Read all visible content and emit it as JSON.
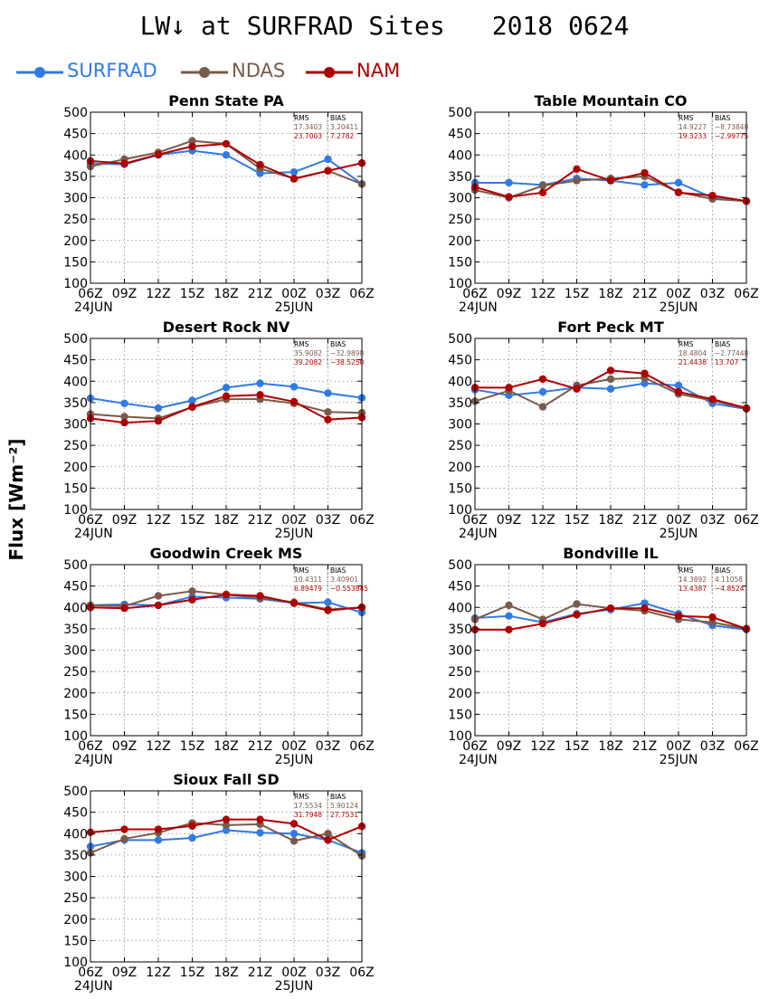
{
  "header": {
    "title": "LW↓ at SURFRAD Sites",
    "date": "2018 0624"
  },
  "colors": {
    "SURFRAD": "#2f7ae5",
    "NDAS": "#7a5a4a",
    "NAM": "#b00000",
    "stats_row1": "#7a5a4a",
    "stats_row2": "#b00000"
  },
  "legend": [
    {
      "name": "SURFRAD",
      "color": "#2f7ae5"
    },
    {
      "name": "NDAS",
      "color": "#7a5a4a"
    },
    {
      "name": "NAM",
      "color": "#b00000"
    }
  ],
  "y_axis_label": "Flux [Wm⁻²]",
  "chart_data": [
    {
      "type": "line",
      "title": "Penn State PA",
      "categories": [
        "06Z",
        "09Z",
        "12Z",
        "15Z",
        "18Z",
        "21Z",
        "00Z",
        "03Z",
        "06Z"
      ],
      "date_labels": [
        "24JUN",
        "25JUN"
      ],
      "ylim": [
        100,
        500
      ],
      "yticks": [
        100,
        150,
        200,
        250,
        300,
        350,
        400,
        450,
        500
      ],
      "grid": true,
      "stats": {
        "headers": [
          "RMS",
          "BIAS"
        ],
        "rows": [
          [
            "17.3403",
            "3.20411"
          ],
          [
            "23.7003",
            "7.2782"
          ]
        ]
      },
      "series": [
        {
          "name": "SURFRAD",
          "values": [
            380,
            378,
            400,
            410,
            400,
            357,
            360,
            390,
            332
          ]
        },
        {
          "name": "NDAS",
          "values": [
            373,
            390,
            406,
            433,
            426,
            368,
            345,
            363,
            332
          ]
        },
        {
          "name": "NAM",
          "values": [
            386,
            380,
            401,
            420,
            426,
            377,
            344,
            363,
            381
          ]
        }
      ]
    },
    {
      "type": "line",
      "title": "Table Mountain CO",
      "categories": [
        "06Z",
        "09Z",
        "12Z",
        "15Z",
        "18Z",
        "21Z",
        "00Z",
        "03Z",
        "06Z"
      ],
      "date_labels": [
        "24JUN",
        "25JUN"
      ],
      "ylim": [
        100,
        500
      ],
      "yticks": [
        100,
        150,
        200,
        250,
        300,
        350,
        400,
        450,
        500
      ],
      "grid": true,
      "stats": {
        "headers": [
          "RMS",
          "BIAS"
        ],
        "rows": [
          [
            "14.9227",
            "−8.73848"
          ],
          [
            "19.3233",
            "−2.99775"
          ]
        ]
      },
      "series": [
        {
          "name": "SURFRAD",
          "values": [
            335,
            335,
            330,
            345,
            340,
            330,
            335,
            300,
            292
          ]
        },
        {
          "name": "NDAS",
          "values": [
            318,
            300,
            328,
            340,
            345,
            350,
            313,
            297,
            292
          ]
        },
        {
          "name": "NAM",
          "values": [
            325,
            302,
            312,
            367,
            340,
            358,
            312,
            305,
            292
          ]
        }
      ]
    },
    {
      "type": "line",
      "title": "Desert Rock NV",
      "categories": [
        "06Z",
        "09Z",
        "12Z",
        "15Z",
        "18Z",
        "21Z",
        "00Z",
        "03Z",
        "06Z"
      ],
      "date_labels": [
        "24JUN",
        "25JUN"
      ],
      "ylim": [
        100,
        500
      ],
      "yticks": [
        100,
        150,
        200,
        250,
        300,
        350,
        400,
        450,
        500
      ],
      "grid": true,
      "stats": {
        "headers": [
          "RMS",
          "BIAS"
        ],
        "rows": [
          [
            "35.9082",
            "−32.9898"
          ],
          [
            "39.2082",
            "−38.5250"
          ]
        ]
      },
      "series": [
        {
          "name": "SURFRAD",
          "values": [
            360,
            348,
            337,
            355,
            385,
            395,
            387,
            372,
            361
          ]
        },
        {
          "name": "NDAS",
          "values": [
            323,
            317,
            313,
            339,
            358,
            358,
            348,
            328,
            326
          ]
        },
        {
          "name": "NAM",
          "values": [
            313,
            303,
            307,
            340,
            365,
            368,
            352,
            310,
            315
          ]
        }
      ]
    },
    {
      "type": "line",
      "title": "Fort Peck MT",
      "categories": [
        "06Z",
        "09Z",
        "12Z",
        "15Z",
        "18Z",
        "21Z",
        "00Z",
        "03Z",
        "06Z"
      ],
      "date_labels": [
        "24JUN",
        "25JUN"
      ],
      "ylim": [
        100,
        500
      ],
      "yticks": [
        100,
        150,
        200,
        250,
        300,
        350,
        400,
        450,
        500
      ],
      "grid": true,
      "stats": {
        "headers": [
          "RMS",
          "BIAS"
        ],
        "rows": [
          [
            "18.4804",
            "−2.77448"
          ],
          [
            "21.4438",
            "13.707"
          ]
        ]
      },
      "series": [
        {
          "name": "SURFRAD",
          "values": [
            380,
            367,
            375,
            385,
            382,
            395,
            390,
            348,
            335
          ]
        },
        {
          "name": "NDAS",
          "values": [
            353,
            378,
            340,
            390,
            405,
            408,
            370,
            355,
            335
          ]
        },
        {
          "name": "NAM",
          "values": [
            385,
            385,
            405,
            382,
            425,
            418,
            375,
            358,
            337
          ]
        }
      ]
    },
    {
      "type": "line",
      "title": "Goodwin Creek MS",
      "categories": [
        "06Z",
        "09Z",
        "12Z",
        "15Z",
        "18Z",
        "21Z",
        "00Z",
        "03Z",
        "06Z"
      ],
      "date_labels": [
        "24JUN",
        "25JUN"
      ],
      "ylim": [
        100,
        500
      ],
      "yticks": [
        100,
        150,
        200,
        250,
        300,
        350,
        400,
        450,
        500
      ],
      "grid": true,
      "stats": {
        "headers": [
          "RMS",
          "BIAS"
        ],
        "rows": [
          [
            "10.4311",
            "3.40901"
          ],
          [
            "6.89479",
            "−0.553845"
          ]
        ]
      },
      "series": [
        {
          "name": "SURFRAD",
          "values": [
            405,
            407,
            405,
            425,
            423,
            420,
            410,
            412,
            388
          ]
        },
        {
          "name": "NDAS",
          "values": [
            405,
            403,
            427,
            438,
            430,
            422,
            412,
            395,
            400
          ]
        },
        {
          "name": "NAM",
          "values": [
            400,
            398,
            405,
            418,
            430,
            427,
            410,
            393,
            400
          ]
        }
      ]
    },
    {
      "type": "line",
      "title": "Bondville IL",
      "categories": [
        "06Z",
        "09Z",
        "12Z",
        "15Z",
        "18Z",
        "21Z",
        "00Z",
        "03Z",
        "06Z"
      ],
      "date_labels": [
        "24JUN",
        "25JUN"
      ],
      "ylim": [
        100,
        500
      ],
      "yticks": [
        100,
        150,
        200,
        250,
        300,
        350,
        400,
        450,
        500
      ],
      "grid": true,
      "stats": {
        "headers": [
          "RMS",
          "BIAS"
        ],
        "rows": [
          [
            "14.3892",
            "4.11058"
          ],
          [
            "13.4387",
            "−4.8524"
          ]
        ]
      },
      "series": [
        {
          "name": "SURFRAD",
          "values": [
            375,
            380,
            365,
            385,
            395,
            410,
            385,
            358,
            348
          ]
        },
        {
          "name": "NDAS",
          "values": [
            372,
            405,
            372,
            408,
            398,
            392,
            372,
            365,
            350
          ]
        },
        {
          "name": "NAM",
          "values": [
            348,
            348,
            362,
            383,
            398,
            398,
            380,
            377,
            350
          ]
        }
      ]
    },
    {
      "type": "line",
      "title": "Sioux Fall SD",
      "categories": [
        "06Z",
        "09Z",
        "12Z",
        "15Z",
        "18Z",
        "21Z",
        "00Z",
        "03Z",
        "06Z"
      ],
      "date_labels": [
        "24JUN",
        "25JUN"
      ],
      "ylim": [
        100,
        500
      ],
      "yticks": [
        100,
        150,
        200,
        250,
        300,
        350,
        400,
        450,
        500
      ],
      "grid": true,
      "stats": {
        "headers": [
          "RMS",
          "BIAS"
        ],
        "rows": [
          [
            "17.5534",
            "5.90124"
          ],
          [
            "31.7948",
            "27.7531"
          ]
        ]
      },
      "series": [
        {
          "name": "SURFRAD",
          "values": [
            370,
            385,
            385,
            390,
            408,
            402,
            400,
            385,
            355
          ]
        },
        {
          "name": "NDAS",
          "values": [
            355,
            388,
            402,
            425,
            420,
            422,
            383,
            400,
            348
          ]
        },
        {
          "name": "NAM",
          "values": [
            403,
            410,
            410,
            418,
            433,
            433,
            423,
            385,
            417
          ]
        }
      ]
    }
  ]
}
